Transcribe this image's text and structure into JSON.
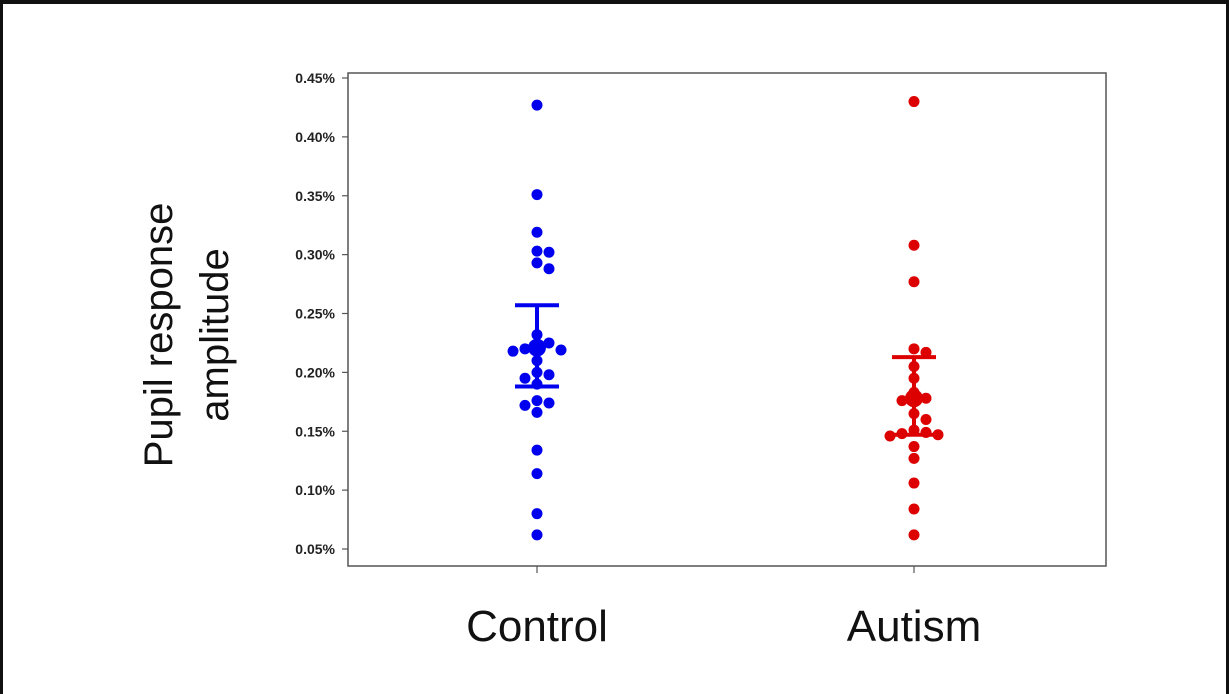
{
  "chart_data": {
    "type": "scatter",
    "ylabel_lines": [
      "Pupil response",
      "amplitude"
    ],
    "categories": [
      "Control",
      "Autism"
    ],
    "y_ticks": [
      0.05,
      0.1,
      0.15,
      0.2,
      0.25,
      0.3,
      0.35,
      0.4,
      0.45
    ],
    "y_tick_labels": [
      "0.05%",
      "0.10%",
      "0.15%",
      "0.20%",
      "0.25%",
      "0.30%",
      "0.35%",
      "0.40%",
      "0.45%"
    ],
    "ylim": [
      0.045,
      0.46
    ],
    "grid": false,
    "legend": "none",
    "series": [
      {
        "category": "Control",
        "color": "#0000ee",
        "points": [
          0.427,
          0.351,
          0.319,
          0.303,
          0.302,
          0.293,
          0.288,
          0.232,
          0.225,
          0.222,
          0.22,
          0.219,
          0.218,
          0.21,
          0.2,
          0.198,
          0.195,
          0.19,
          0.176,
          0.174,
          0.172,
          0.166,
          0.134,
          0.114,
          0.08,
          0.062
        ],
        "mean": 0.221,
        "error_upper": 0.257,
        "error_lower": 0.188
      },
      {
        "category": "Autism",
        "color": "#dd0000",
        "points": [
          0.43,
          0.308,
          0.277,
          0.22,
          0.217,
          0.205,
          0.195,
          0.183,
          0.178,
          0.176,
          0.165,
          0.16,
          0.151,
          0.149,
          0.148,
          0.147,
          0.146,
          0.137,
          0.127,
          0.106,
          0.084,
          0.062
        ],
        "mean": 0.178,
        "error_upper": 0.213,
        "error_lower": 0.147
      }
    ]
  }
}
